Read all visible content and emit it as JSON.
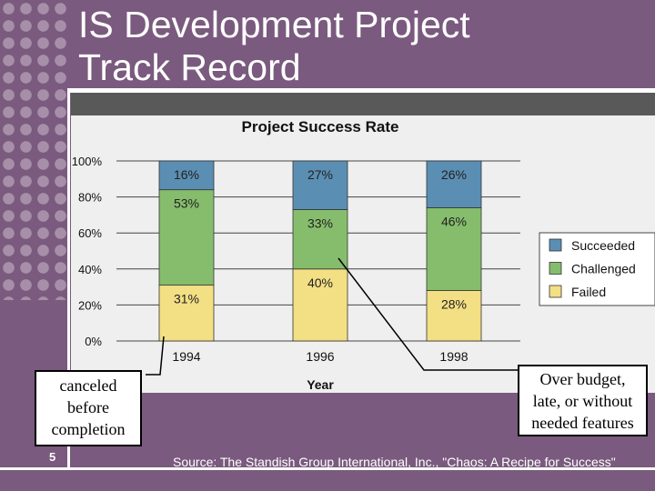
{
  "slide": {
    "title_line1": "IS Development Project",
    "title_line2": "Track Record",
    "page_number": "5",
    "source": "Source: The Standish Group International, Inc., \"Chaos: A Recipe for Success\"",
    "callout_left": [
      "canceled",
      "before",
      "completion"
    ],
    "callout_right": [
      "Over budget,",
      "late, or without",
      "needed features"
    ]
  },
  "colors": {
    "succeeded": "#5b8eb3",
    "challenged": "#86bd6d",
    "failed": "#f3df84",
    "background": "#7a5a7e"
  },
  "chart_data": {
    "type": "bar",
    "stacked": true,
    "title": "Project Success Rate",
    "xlabel": "Year",
    "ylabel": "",
    "categories": [
      "1994",
      "1996",
      "1998"
    ],
    "series": [
      {
        "name": "Failed",
        "values": [
          31,
          40,
          28
        ],
        "labels": [
          "31%",
          "40%",
          "28%"
        ],
        "color": "#f3df84"
      },
      {
        "name": "Challenged",
        "values": [
          53,
          33,
          46
        ],
        "labels": [
          "53%",
          "33%",
          "46%"
        ],
        "color": "#86bd6d"
      },
      {
        "name": "Succeeded",
        "values": [
          16,
          27,
          26
        ],
        "labels": [
          "16%",
          "27%",
          "26%"
        ],
        "color": "#5b8eb3"
      }
    ],
    "ylim": [
      0,
      100
    ],
    "yticks": [
      "0%",
      "20%",
      "40%",
      "60%",
      "80%",
      "100%"
    ],
    "legend": [
      "Succeeded",
      "Challenged",
      "Failed"
    ],
    "grid": true
  }
}
